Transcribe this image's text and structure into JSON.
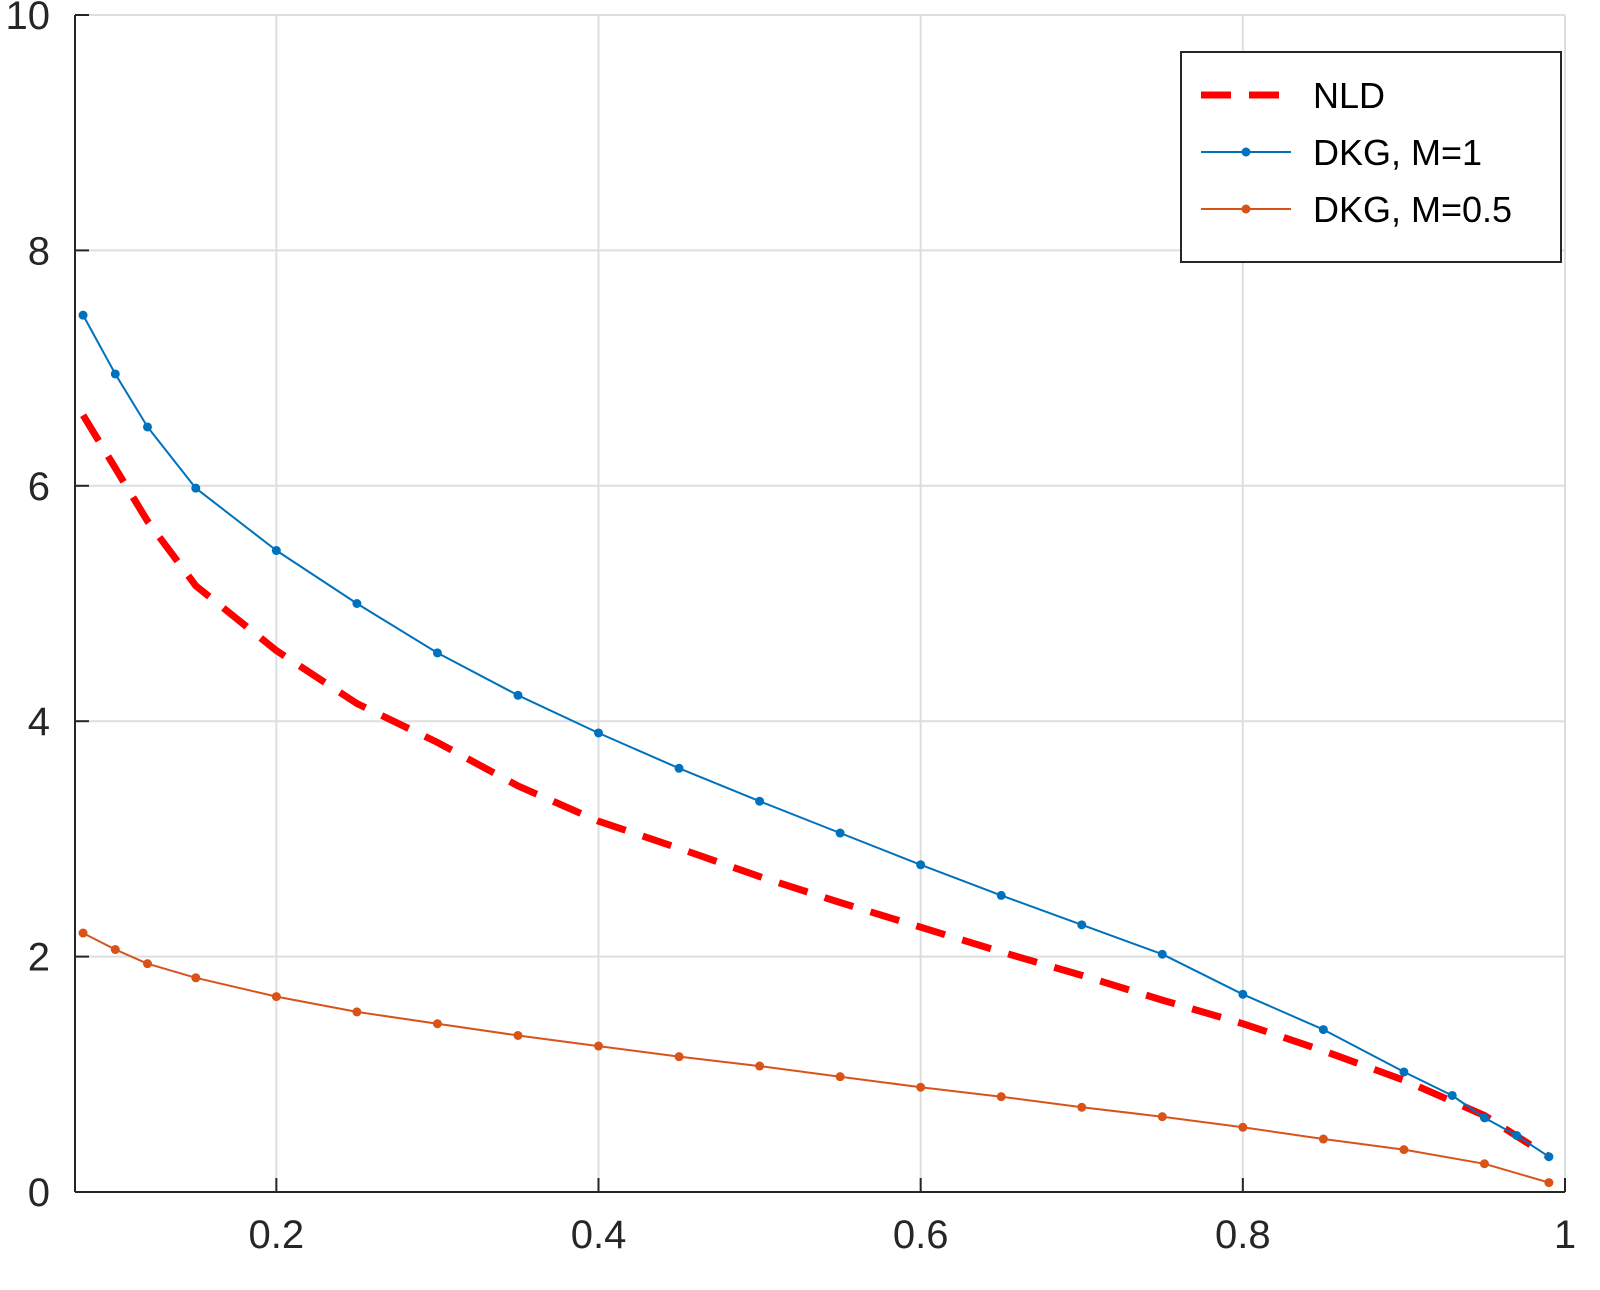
{
  "chart_data": {
    "type": "line",
    "title": "",
    "xlabel": "",
    "ylabel": "",
    "xlim": [
      0.075,
      1.0
    ],
    "ylim": [
      0,
      10
    ],
    "grid": true,
    "legend_position": "top-right",
    "x_ticks": [
      0.2,
      0.4,
      0.6,
      0.8,
      1
    ],
    "x_tick_labels": [
      "0.2",
      "0.4",
      "0.6",
      "0.8",
      "1"
    ],
    "y_ticks": [
      0,
      2,
      4,
      6,
      8,
      10
    ],
    "y_tick_labels": [
      "0",
      "2",
      "4",
      "6",
      "8",
      "10"
    ],
    "series": [
      {
        "name": "NLD",
        "style": "dashed",
        "markers": false,
        "color": "#ff0000",
        "x": [
          0.08,
          0.1,
          0.12,
          0.15,
          0.2,
          0.25,
          0.3,
          0.35,
          0.4,
          0.45,
          0.5,
          0.55,
          0.6,
          0.65,
          0.7,
          0.75,
          0.8,
          0.85,
          0.9,
          0.95,
          0.99
        ],
        "y": [
          6.6,
          6.15,
          5.7,
          5.15,
          4.6,
          4.15,
          3.82,
          3.45,
          3.15,
          2.92,
          2.68,
          2.46,
          2.25,
          2.04,
          1.84,
          1.63,
          1.43,
          1.2,
          0.95,
          0.65,
          0.3
        ]
      },
      {
        "name": "DKG, M=1",
        "style": "solid",
        "markers": true,
        "color": "#0072bd",
        "x": [
          0.08,
          0.1,
          0.12,
          0.15,
          0.2,
          0.25,
          0.3,
          0.35,
          0.4,
          0.45,
          0.5,
          0.55,
          0.6,
          0.65,
          0.7,
          0.75,
          0.8,
          0.85,
          0.9,
          0.93,
          0.95,
          0.97,
          0.99
        ],
        "y": [
          7.45,
          6.95,
          6.5,
          5.98,
          5.45,
          5.0,
          4.58,
          4.22,
          3.9,
          3.6,
          3.32,
          3.05,
          2.78,
          2.52,
          2.27,
          2.02,
          1.68,
          1.38,
          1.02,
          0.82,
          0.63,
          0.48,
          0.3
        ]
      },
      {
        "name": "DKG, M=0.5",
        "style": "solid",
        "markers": true,
        "color": "#d95319",
        "x": [
          0.08,
          0.1,
          0.12,
          0.15,
          0.2,
          0.25,
          0.3,
          0.35,
          0.4,
          0.45,
          0.5,
          0.55,
          0.6,
          0.65,
          0.7,
          0.75,
          0.8,
          0.85,
          0.9,
          0.95,
          0.99
        ],
        "y": [
          2.2,
          2.06,
          1.94,
          1.82,
          1.66,
          1.53,
          1.43,
          1.33,
          1.24,
          1.15,
          1.07,
          0.98,
          0.89,
          0.81,
          0.72,
          0.64,
          0.55,
          0.45,
          0.36,
          0.24,
          0.08
        ]
      }
    ]
  }
}
